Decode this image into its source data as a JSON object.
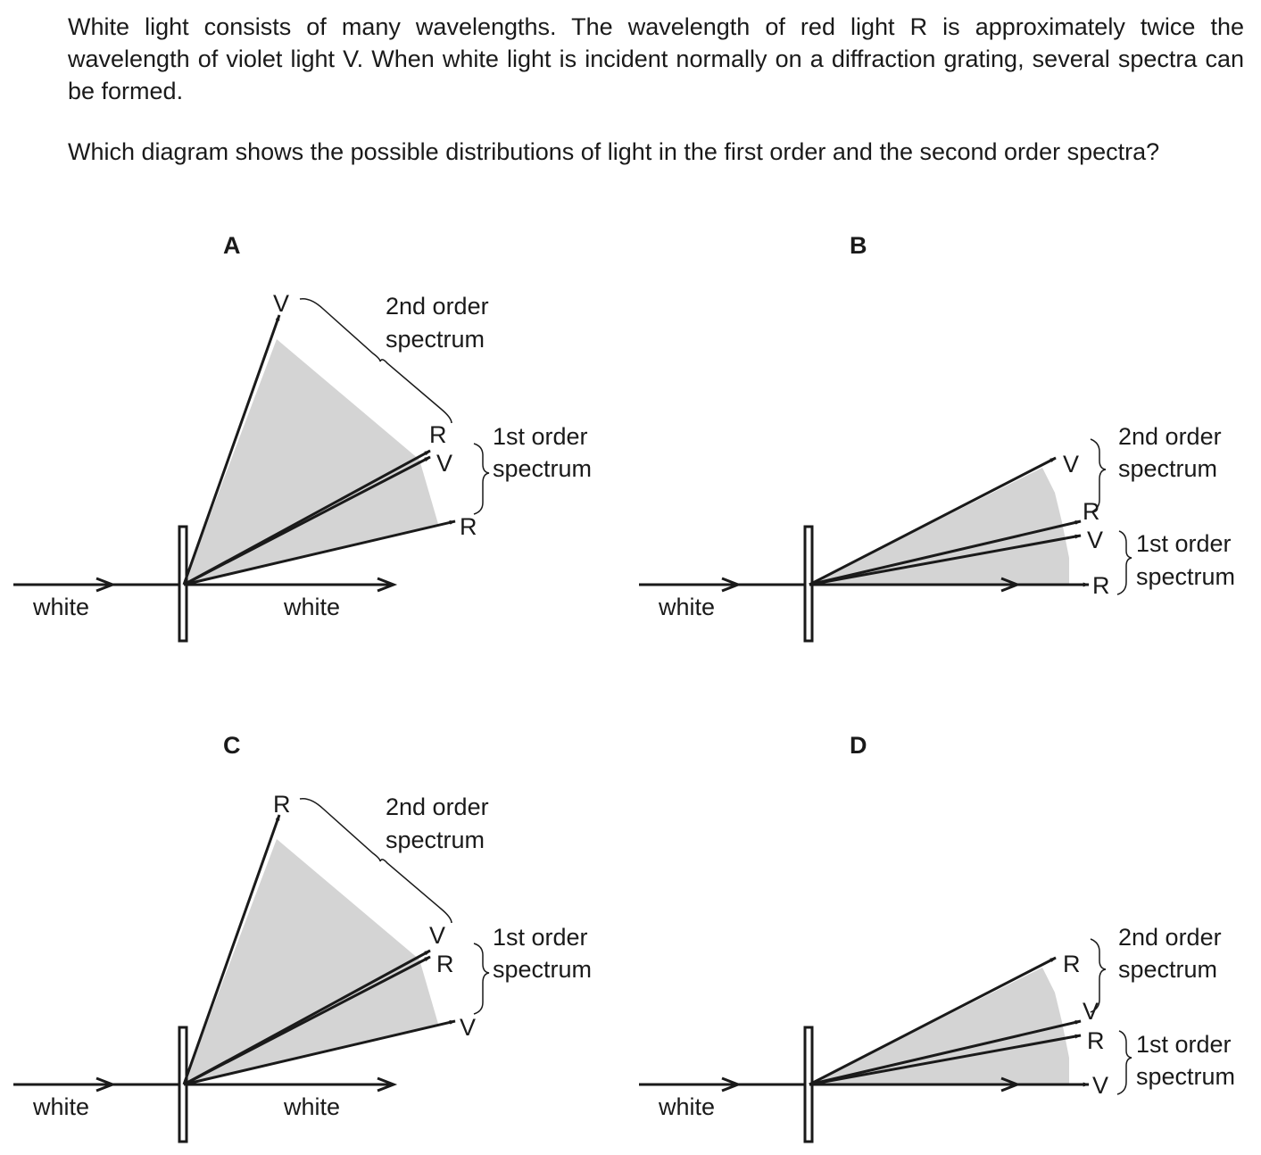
{
  "question": {
    "paragraph1": "White light consists of many wavelengths. The wavelength of red light R is approximately twice the wavelength of violet light V. When white light is incident normally on a diffraction grating, several spectra can be formed.",
    "paragraph2": "Which diagram shows the possible distributions of light in the first order and the second order spectra?"
  },
  "options": {
    "A": {
      "letter": "A",
      "incident": "white",
      "transmitted": "white",
      "second_order": {
        "label_line1": "2nd order",
        "label_line2": "spectrum",
        "top": "V",
        "bottom": "R"
      },
      "first_order": {
        "label_line1": "1st order",
        "label_line2": "spectrum",
        "top": "V",
        "bottom": "R"
      }
    },
    "B": {
      "letter": "B",
      "incident": "white",
      "second_order": {
        "label_line1": "2nd order",
        "label_line2": "spectrum",
        "top": "V",
        "bottom": "R"
      },
      "first_order": {
        "label_line1": "1st order",
        "label_line2": "spectrum",
        "top": "V",
        "bottom": "R"
      }
    },
    "C": {
      "letter": "C",
      "incident": "white",
      "transmitted": "white",
      "second_order": {
        "label_line1": "2nd order",
        "label_line2": "spectrum",
        "top": "R",
        "bottom": "V"
      },
      "first_order": {
        "label_line1": "1st order",
        "label_line2": "spectrum",
        "top": "R",
        "bottom": "V"
      }
    },
    "D": {
      "letter": "D",
      "incident": "white",
      "second_order": {
        "label_line1": "2nd order",
        "label_line2": "spectrum",
        "top": "R",
        "bottom": "V"
      },
      "first_order": {
        "label_line1": "1st order",
        "label_line2": "spectrum",
        "top": "R",
        "bottom": "V"
      }
    }
  },
  "colors": {
    "ink": "#1a1a1a",
    "spectrum_fill": "#d4d4d4"
  }
}
